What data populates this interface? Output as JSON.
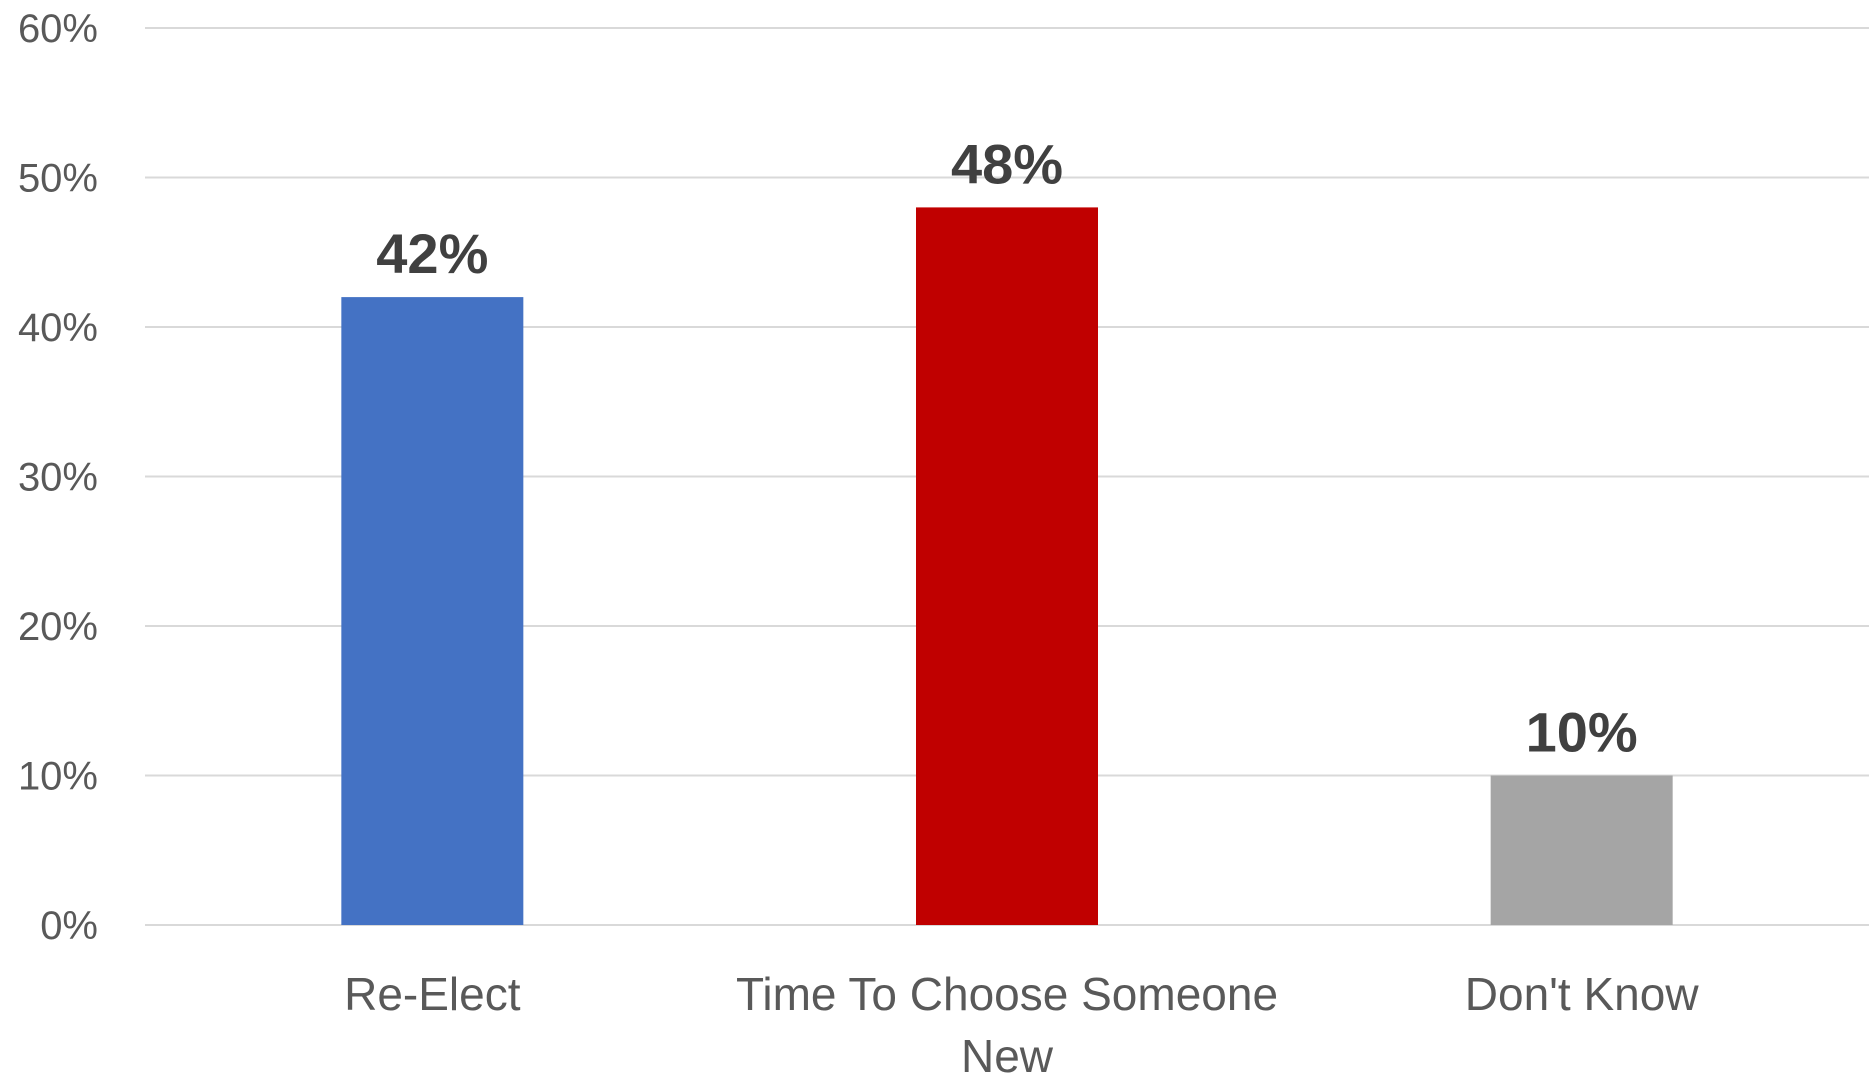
{
  "chart_data": {
    "type": "bar",
    "title": "",
    "xlabel": "",
    "ylabel": "",
    "categories": [
      "Re-Elect",
      "Time To Choose Someone New",
      "Don't Know"
    ],
    "category_lines": [
      [
        "Re-Elect"
      ],
      [
        "Time To Choose Someone",
        "New"
      ],
      [
        "Don't Know"
      ]
    ],
    "values": [
      42,
      48,
      10
    ],
    "data_labels": [
      "42%",
      "48%",
      "10%"
    ],
    "colors": [
      "#4472c4",
      "#c00000",
      "#a5a5a5"
    ],
    "ylim": [
      0,
      60
    ],
    "yticks": [
      0,
      10,
      20,
      30,
      40,
      50,
      60
    ],
    "ytick_labels": [
      "0%",
      "10%",
      "20%",
      "30%",
      "40%",
      "50%",
      "60%"
    ],
    "grid": true,
    "legend": "none"
  }
}
